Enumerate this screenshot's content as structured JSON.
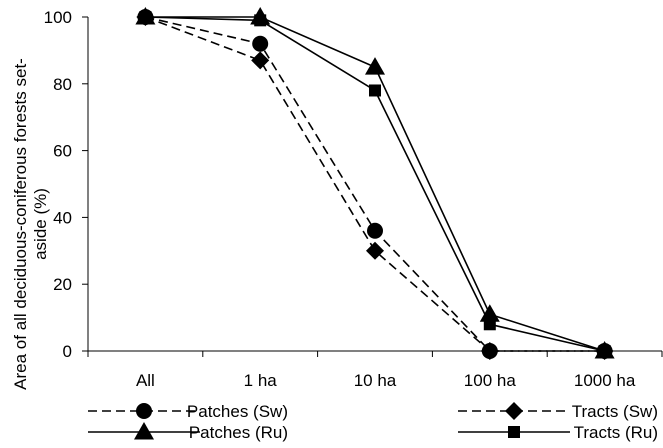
{
  "chart_data": {
    "type": "line",
    "title": "",
    "ylabel_lines": [
      "Area of all deciduous-coniferous forests set-",
      "aside (%)"
    ],
    "xlabel": "",
    "categories": [
      "All",
      "1 ha",
      "10 ha",
      "100 ha",
      "1000 ha"
    ],
    "ylim": [
      0,
      100
    ],
    "yticks": [
      "0",
      "20",
      "40",
      "60",
      "80",
      "100"
    ],
    "grid": false,
    "legend_position": "bottom",
    "series": [
      {
        "name": "Patches (Sw)",
        "values": [
          100,
          92,
          36,
          0,
          0
        ],
        "marker": "circle",
        "dashed": true
      },
      {
        "name": "Tracts (Sw)",
        "values": [
          100,
          87,
          30,
          0,
          0
        ],
        "marker": "diamond",
        "dashed": true
      },
      {
        "name": "Patches (Ru)",
        "values": [
          100,
          100,
          85,
          11,
          0
        ],
        "marker": "triangle",
        "dashed": false
      },
      {
        "name": "Tracts (Ru)",
        "values": [
          100,
          99,
          78,
          8,
          0
        ],
        "marker": "square",
        "dashed": false
      }
    ]
  }
}
